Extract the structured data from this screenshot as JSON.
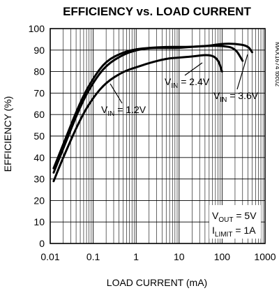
{
  "chart_data": {
    "type": "line",
    "title": "EFFICIENCY vs. LOAD CURRENT",
    "xlabel": "LOAD CURRENT (mA)",
    "ylabel": "EFFICIENCY (%)",
    "x_scale": "log",
    "xlim": [
      0.01,
      1000
    ],
    "ylim": [
      0,
      100
    ],
    "grid": true,
    "x_tick_labels": [
      "0.01",
      "0.1",
      "1",
      "10",
      "100",
      "1000"
    ],
    "x_ticks": [
      0.01,
      0.1,
      1,
      10,
      100,
      1000
    ],
    "y_ticks": [
      0,
      10,
      20,
      30,
      40,
      50,
      60,
      70,
      80,
      90,
      100
    ],
    "part_id": "MAX1674 toc02",
    "conditions": {
      "vout": {
        "main": "V",
        "sub": "OUT",
        "value": " = 5V"
      },
      "ilimit": {
        "main": "I",
        "sub": "LIMIT",
        "value": " = 1A"
      }
    },
    "series": [
      {
        "name_main": "V",
        "name_sub": "IN",
        "name_value": " = 1.2V",
        "x": [
          0.012,
          0.02,
          0.05,
          0.1,
          0.2,
          0.5,
          1,
          2,
          5,
          10,
          20,
          50,
          80,
          100
        ],
        "y": [
          29,
          40,
          58,
          68,
          75,
          80,
          82,
          84,
          86,
          86.5,
          87,
          88,
          86,
          80
        ]
      },
      {
        "name_main": "V",
        "name_sub": "IN",
        "name_value": " = 2.4V",
        "x": [
          0.012,
          0.02,
          0.05,
          0.1,
          0.2,
          0.5,
          1,
          2,
          5,
          10,
          20,
          50,
          100,
          200,
          300
        ],
        "y": [
          33,
          44,
          64,
          75,
          83,
          88,
          90,
          91,
          91,
          91,
          91.5,
          92,
          92,
          91,
          85
        ]
      },
      {
        "name_main": "V",
        "name_sub": "IN",
        "name_value": " = 3.6V",
        "x": [
          0.012,
          0.02,
          0.05,
          0.1,
          0.2,
          0.5,
          1,
          2,
          5,
          10,
          20,
          50,
          100,
          200,
          400,
          500
        ],
        "y": [
          35,
          46,
          66,
          77,
          85,
          89,
          90.5,
          91,
          91.5,
          91.5,
          91.5,
          92,
          93,
          93,
          92,
          89
        ]
      }
    ]
  }
}
